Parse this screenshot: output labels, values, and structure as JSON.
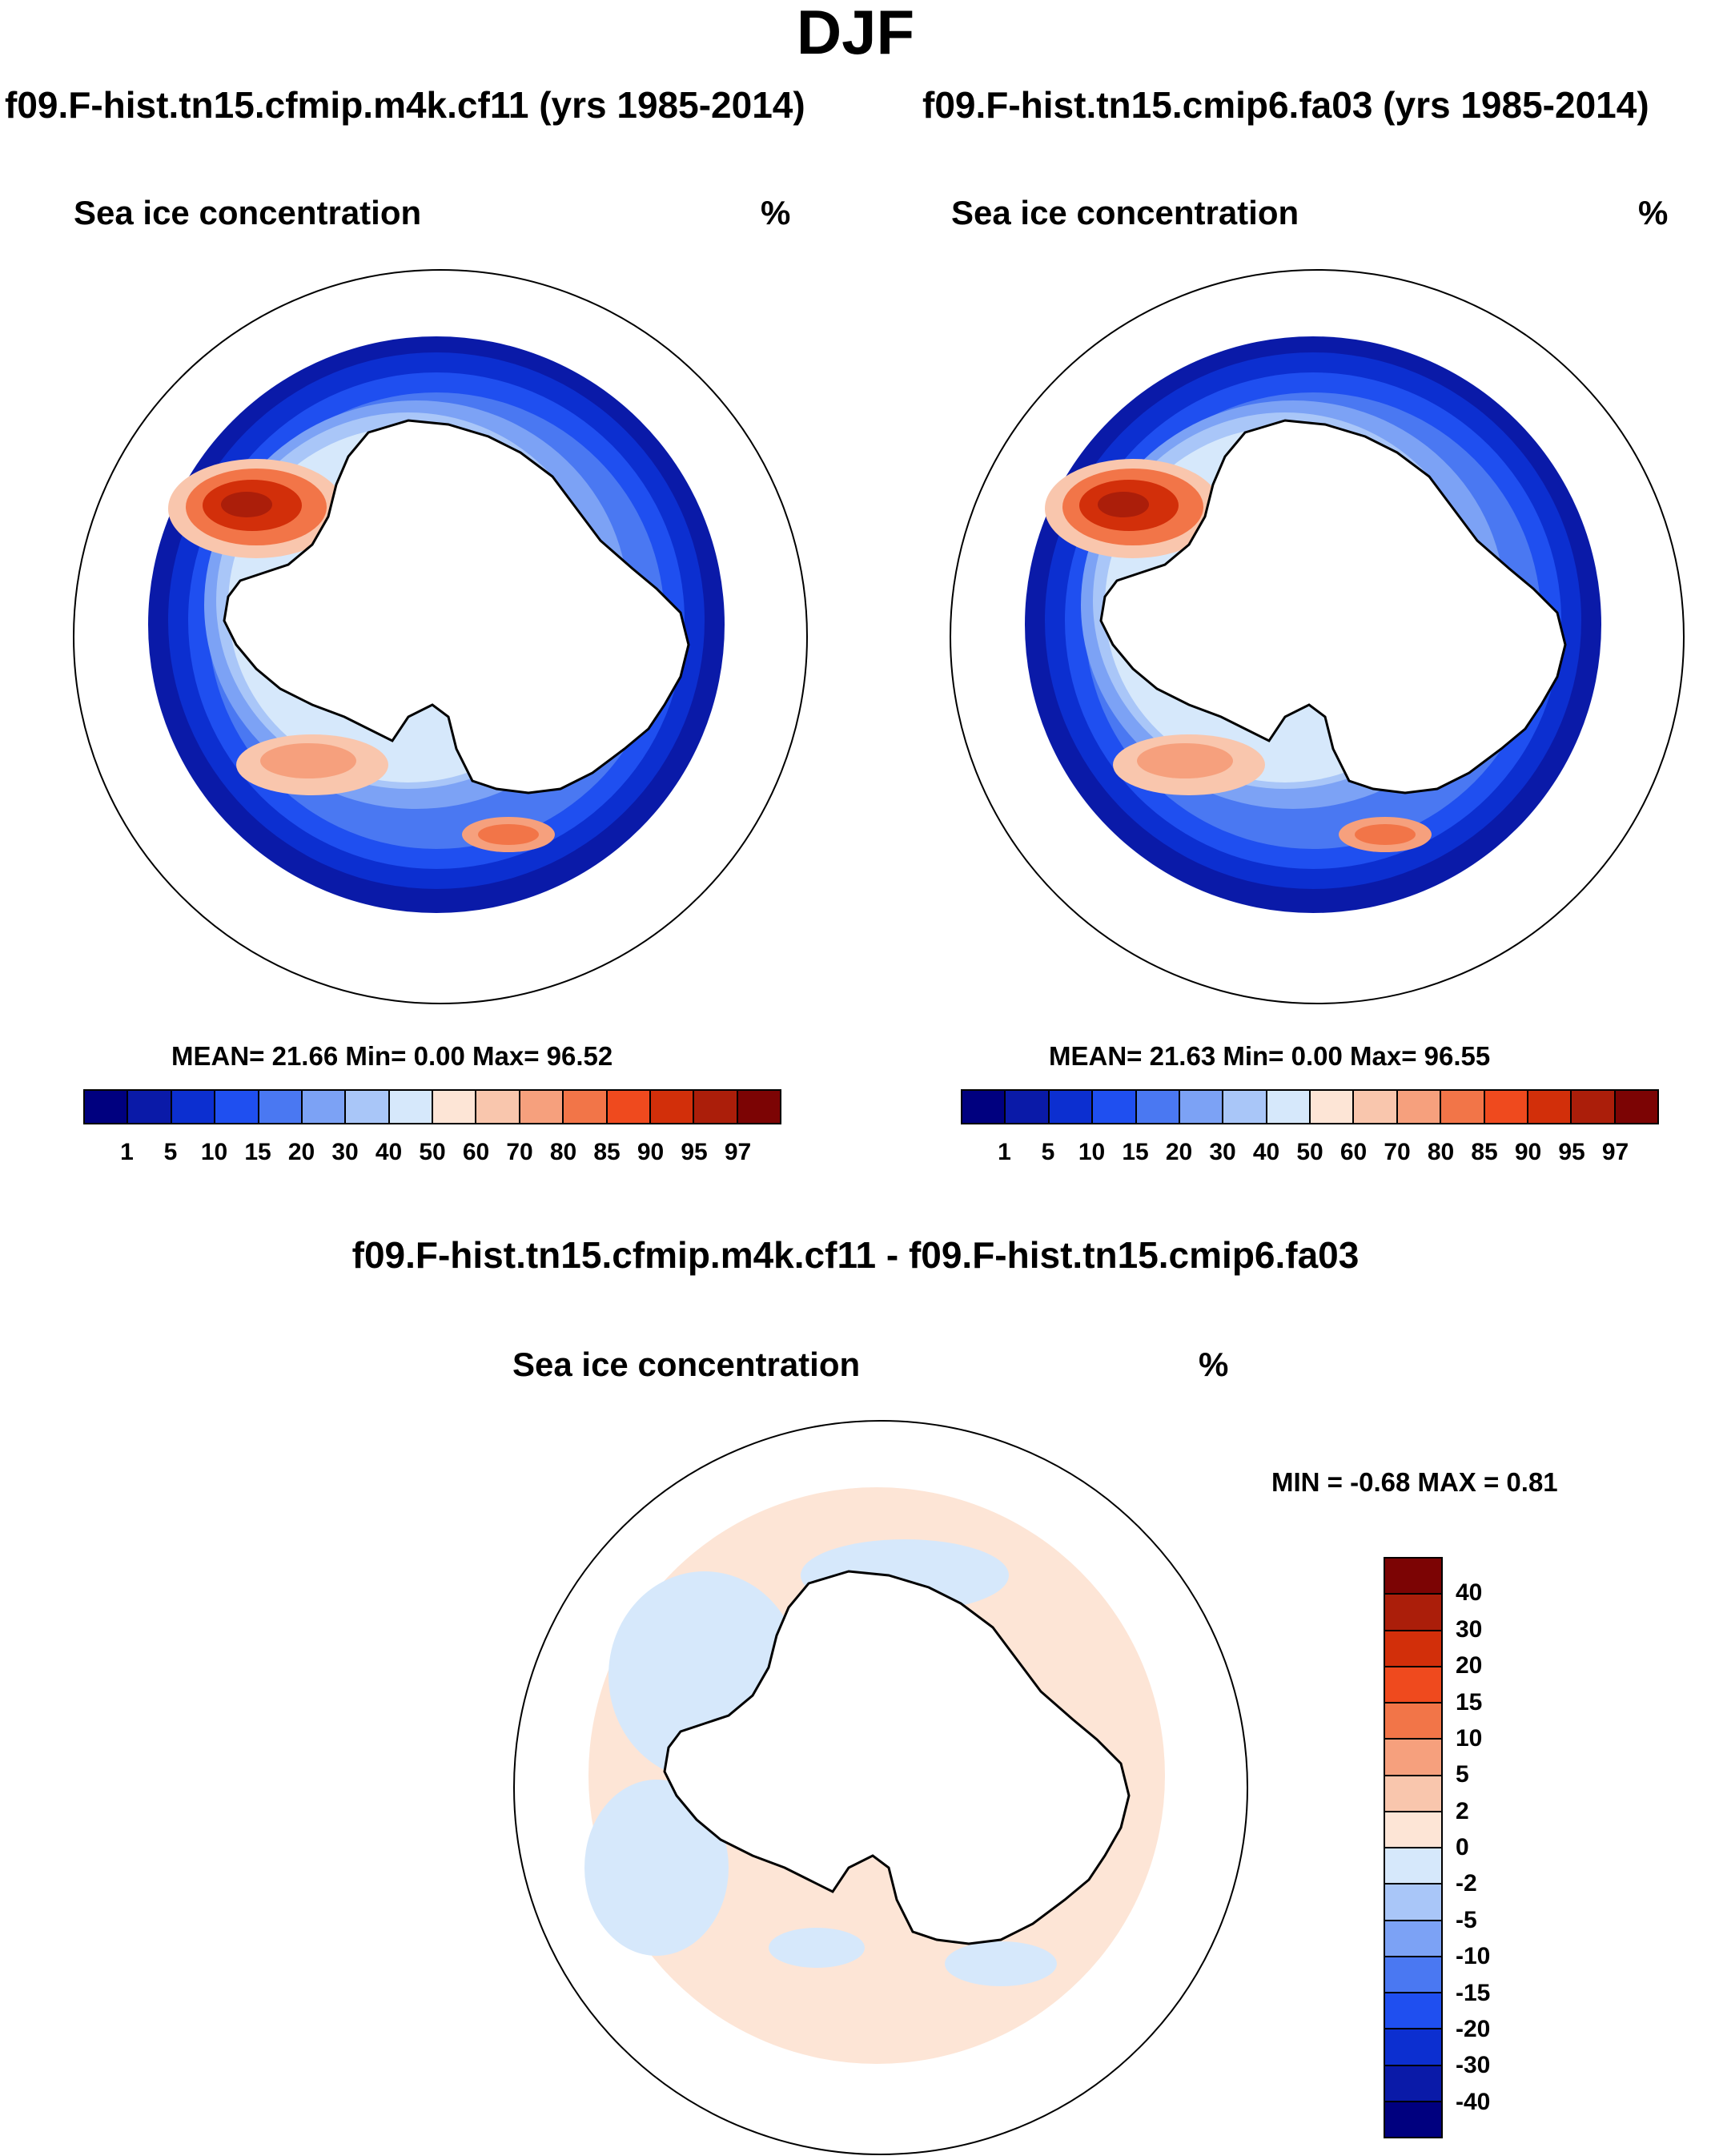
{
  "season": "DJF",
  "panels": [
    {
      "case_title": "f09.F-hist.tn15.cfmip.m4k.cf11 (yrs 1985-2014)",
      "variable": "Sea ice concentration",
      "units": "%",
      "stats": "MEAN=  21.66  Min=    0.00  Max=  96.52"
    },
    {
      "case_title": "f09.F-hist.tn15.cmip6.fa03 (yrs 1985-2014)",
      "variable": "Sea ice concentration",
      "units": "%",
      "stats": "MEAN=  21.63  Min=    0.00  Max=  96.55"
    }
  ],
  "difference": {
    "title": "f09.F-hist.tn15.cfmip.m4k.cf11 - f09.F-hist.tn15.cmip6.fa03",
    "variable": "Sea ice concentration",
    "units": "%",
    "stats": "MIN =  -0.68 MAX =   0.81"
  },
  "colorbar": {
    "colors": [
      "#00007f",
      "#0a1aa8",
      "#0c2fd0",
      "#1f4ff0",
      "#4a78f2",
      "#7ca2f5",
      "#a9c6f8",
      "#d6e8fb",
      "#fde5d6",
      "#f9c6ad",
      "#f6a07d",
      "#f27548",
      "#ef4a1e",
      "#d22f0a",
      "#ab1e0a",
      "#7c0404"
    ],
    "labels": [
      "1",
      "5",
      "10",
      "15",
      "20",
      "30",
      "40",
      "50",
      "60",
      "70",
      "80",
      "85",
      "90",
      "95",
      "97"
    ]
  },
  "diff_colorbar": {
    "colors": [
      "#7c0404",
      "#ab1e0a",
      "#d22f0a",
      "#ef4a1e",
      "#f27548",
      "#f6a07d",
      "#f9c6ad",
      "#fde5d6",
      "#d6e8fb",
      "#a9c6f8",
      "#7ca2f5",
      "#4a78f2",
      "#1f4ff0",
      "#0c2fd0",
      "#0a1aa8",
      "#00007f"
    ],
    "labels": [
      "40",
      "30",
      "20",
      "15",
      "10",
      "5",
      "2",
      "0",
      "-2",
      "-5",
      "-10",
      "-15",
      "-20",
      "-30",
      "-40"
    ]
  }
}
